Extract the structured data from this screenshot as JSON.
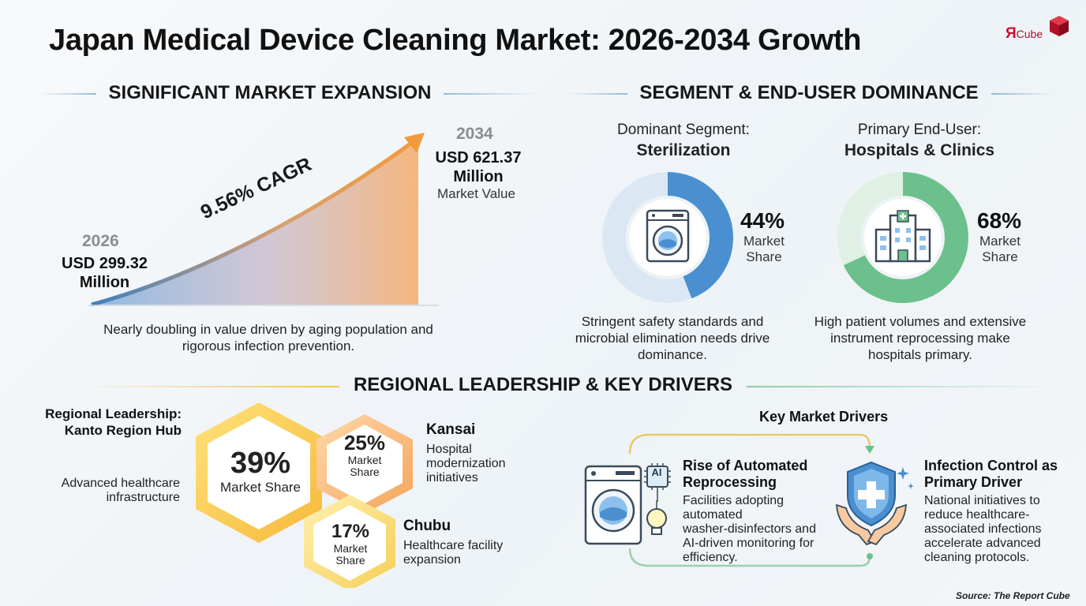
{
  "title": "Japan Medical Device Cleaning Market: 2026-2034 Growth",
  "logo": {
    "main": "Я",
    "suffix": "Cube"
  },
  "expansion": {
    "heading": "SIGNIFICANT MARKET EXPANSION",
    "start_year": "2026",
    "start_value_1": "USD 299.32",
    "start_value_2": "Million",
    "cagr": "9.56% CAGR",
    "end_year": "2034",
    "end_value_1": "USD 621.37",
    "end_value_2": "Million",
    "end_caption": "Market Value",
    "note_1": "Nearly doubling in value driven by aging population and",
    "note_2": "rigorous infection prevention."
  },
  "segment": {
    "heading": "SEGMENT & END-USER DOMINANCE",
    "seg_label": "Dominant Segment:",
    "seg_name": "Sterilization",
    "seg_pct": "44%",
    "seg_share_1": "Market",
    "seg_share_2": "Share",
    "seg_fraction": 0.44,
    "seg_note_1": "Stringent safety standards and",
    "seg_note_2": "microbial elimination needs drive",
    "seg_note_3": "dominance.",
    "user_label": "Primary End-User:",
    "user_name": "Hospitals & Clinics",
    "user_pct": "68%",
    "user_share_1": "Market",
    "user_share_2": "Share",
    "user_fraction": 0.68,
    "user_note_1": "High patient volumes and extensive",
    "user_note_2": "instrument reprocessing make",
    "user_note_3": "hospitals primary.",
    "seg_color": "#4a90d0",
    "user_color": "#6cc08c"
  },
  "regional": {
    "heading": "REGIONAL LEADERSHIP & KEY DRIVERS",
    "lead_1": "Regional Leadership:",
    "lead_2": "Kanto Region Hub",
    "lead_note_1": "Advanced healthcare",
    "lead_note_2": "infrastructure",
    "kanto_pct": "39%",
    "kanto_share": "Market Share",
    "kansai_pct": "25%",
    "kansai_share_1": "Market",
    "kansai_share_2": "Share",
    "kansai_name": "Kansai",
    "kansai_note_1": "Hospital",
    "kansai_note_2": "modernization",
    "kansai_note_3": "initiatives",
    "chubu_pct": "17%",
    "chubu_share_1": "Market",
    "chubu_share_2": "Share",
    "chubu_name": "Chubu",
    "chubu_note_1": "Healthcare facility",
    "chubu_note_2": "expansion"
  },
  "drivers": {
    "heading": "Key Market Drivers",
    "d1_title_1": "Rise of Automated",
    "d1_title_2": "Reprocessing",
    "d1_body": [
      "Facilities adopting",
      "automated",
      "washer-disinfectors and",
      "AI-driven monitoring for",
      "efficiency."
    ],
    "ai_label": "AI",
    "d2_title_1": "Infection Control as",
    "d2_title_2": "Primary Driver",
    "d2_body": [
      "National initiatives to",
      "reduce healthcare-",
      "associated infections",
      "accelerate advanced",
      "cleaning protocols."
    ]
  },
  "source": "Source: The Report Cube"
}
